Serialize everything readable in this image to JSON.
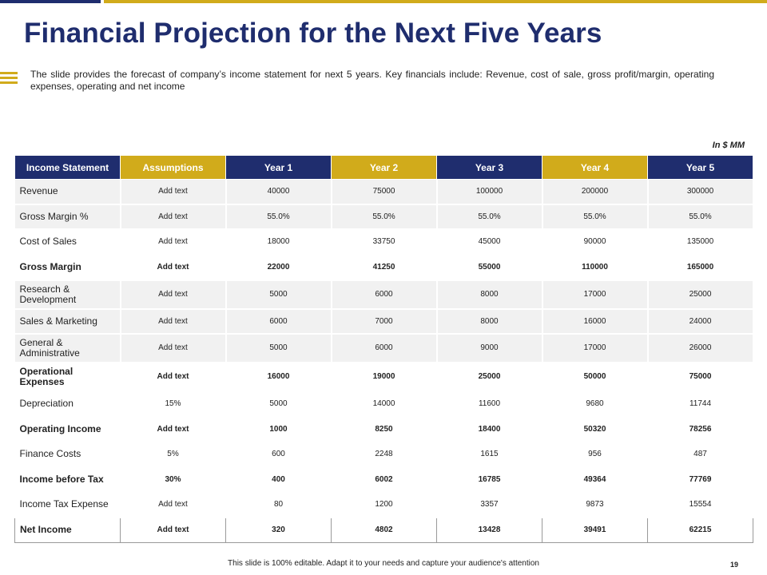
{
  "slide": {
    "title": "Financial Projection for the Next Five Years",
    "description": "The slide provides the forecast of company’s income statement for next 5 years. Key financials include: Revenue, cost of sale, gross profit/margin, operating expenses, operating and net income",
    "units": "In $ MM",
    "footer": "This slide is 100% editable. Adapt it to your needs and capture your audience's attention",
    "page_number": "19",
    "colors": {
      "navy": "#1f2d6e",
      "gold": "#d1ab1b",
      "row_shade": "#f1f1f1"
    }
  },
  "table": {
    "headers": [
      "Income Statement",
      "Assumptions",
      "Year 1",
      "Year 2",
      "Year 3",
      "Year 4",
      "Year 5"
    ],
    "rows": [
      {
        "label": "Revenue",
        "cells": [
          "Add text",
          "40000",
          "75000",
          "100000",
          "200000",
          "300000"
        ]
      },
      {
        "label": "Gross Margin %",
        "cells": [
          "Add text",
          "55.0%",
          "55.0%",
          "55.0%",
          "55.0%",
          "55.0%"
        ]
      },
      {
        "label": "Cost of Sales",
        "cells": [
          "Add text",
          "18000",
          "33750",
          "45000",
          "90000",
          "135000"
        ]
      },
      {
        "label": "Gross Margin",
        "cells": [
          "Add text",
          "22000",
          "41250",
          "55000",
          "110000",
          "165000"
        ]
      },
      {
        "label": "Research & Development",
        "cells": [
          "Add text",
          "5000",
          "6000",
          "8000",
          "17000",
          "25000"
        ]
      },
      {
        "label": "Sales & Marketing",
        "cells": [
          "Add text",
          "6000",
          "7000",
          "8000",
          "16000",
          "24000"
        ]
      },
      {
        "label": "General & Administrative",
        "cells": [
          "Add text",
          "5000",
          "6000",
          "9000",
          "17000",
          "26000"
        ]
      },
      {
        "label": "Operational Expenses",
        "cells": [
          "Add text",
          "16000",
          "19000",
          "25000",
          "50000",
          "75000"
        ]
      },
      {
        "label": "Depreciation",
        "cells": [
          "15%",
          "5000",
          "14000",
          "11600",
          "9680",
          "11744"
        ]
      },
      {
        "label": "Operating Income",
        "cells": [
          "Add text",
          "1000",
          "8250",
          "18400",
          "50320",
          "78256"
        ]
      },
      {
        "label": "Finance Costs",
        "cells": [
          "5%",
          "600",
          "2248",
          "1615",
          "956",
          "487"
        ]
      },
      {
        "label": "Income before Tax",
        "cells": [
          "30%",
          "400",
          "6002",
          "16785",
          "49364",
          "77769"
        ]
      },
      {
        "label": "Income Tax Expense",
        "cells": [
          "Add text",
          "80",
          "1200",
          "3357",
          "9873",
          "15554"
        ]
      },
      {
        "label": "Net Income",
        "cells": [
          "Add text",
          "320",
          "4802",
          "13428",
          "39491",
          "62215"
        ]
      }
    ]
  }
}
